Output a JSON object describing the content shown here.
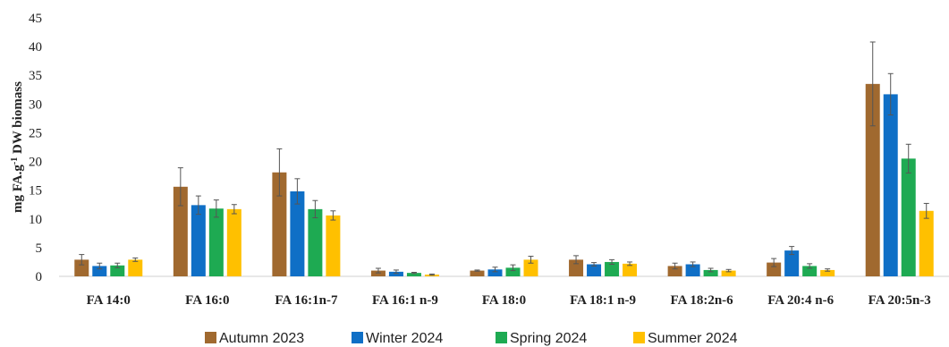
{
  "chart_data": {
    "type": "bar",
    "title": "",
    "xlabel": "",
    "ylabel": {
      "main": "mg FA.g",
      "sup": "-1",
      "rest": " DW biomass"
    },
    "ylim": [
      0,
      45
    ],
    "yticks": [
      0,
      5,
      10,
      15,
      20,
      25,
      30,
      35,
      40,
      45
    ],
    "grid": false,
    "legend_position": "bottom",
    "categories": [
      "FA 14:0",
      "FA 16:0",
      "FA 16:1n-7",
      "FA 16:1 n-9",
      "FA 18:0",
      "FA 18:1 n-9",
      "FA 18:2n-6",
      "FA 20:4 n-6",
      "FA 20:5n-3"
    ],
    "series": [
      {
        "name": "Autumn 2023",
        "color": "#A0692F",
        "values": [
          2.9,
          15.6,
          18.1,
          1.0,
          1.0,
          2.9,
          1.8,
          2.4,
          33.5
        ],
        "errors": [
          0.9,
          3.3,
          4.1,
          0.4,
          0.1,
          0.7,
          0.5,
          0.7,
          7.3
        ]
      },
      {
        "name": "Winter 2024",
        "color": "#0F6FC6",
        "values": [
          1.8,
          12.4,
          14.8,
          0.8,
          1.2,
          2.1,
          2.1,
          4.5,
          31.7
        ],
        "errors": [
          0.5,
          1.6,
          2.2,
          0.3,
          0.4,
          0.3,
          0.4,
          0.7,
          3.6
        ]
      },
      {
        "name": "Spring 2024",
        "color": "#1EAA52",
        "values": [
          1.9,
          11.8,
          11.7,
          0.6,
          1.5,
          2.5,
          1.1,
          1.8,
          20.5
        ],
        "errors": [
          0.4,
          1.5,
          1.5,
          0.1,
          0.5,
          0.4,
          0.3,
          0.4,
          2.5
        ]
      },
      {
        "name": "Summer 2024",
        "color": "#FFC000",
        "values": [
          2.9,
          11.7,
          10.6,
          0.3,
          2.9,
          2.2,
          1.0,
          1.1,
          11.4
        ],
        "errors": [
          0.3,
          0.8,
          0.8,
          0.1,
          0.6,
          0.3,
          0.2,
          0.2,
          1.3
        ]
      }
    ]
  }
}
